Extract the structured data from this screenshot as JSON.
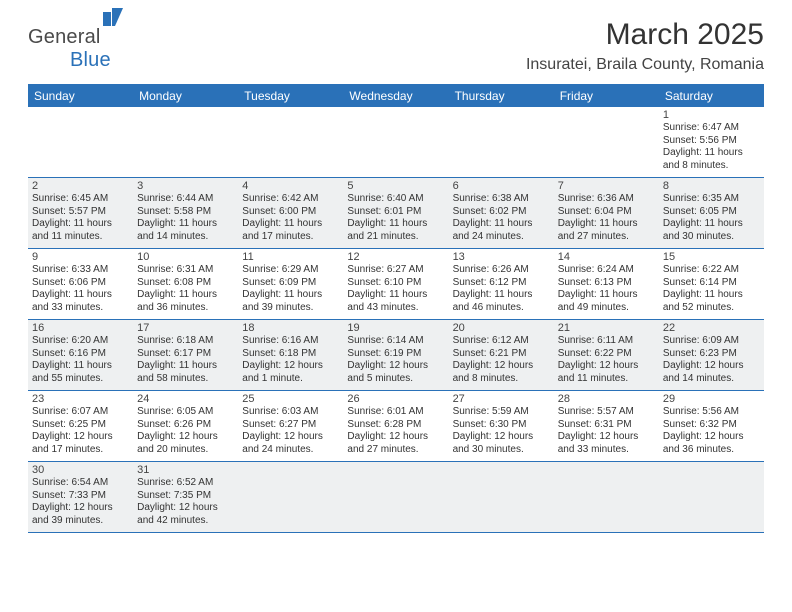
{
  "logo": {
    "word1": "General",
    "word2": "Blue"
  },
  "title": "March 2025",
  "location": "Insuratei, Braila County, Romania",
  "colors": {
    "brand": "#2a71b8",
    "shade": "#eef0f1",
    "text": "#333333"
  },
  "dow": [
    "Sunday",
    "Monday",
    "Tuesday",
    "Wednesday",
    "Thursday",
    "Friday",
    "Saturday"
  ],
  "weeks": [
    [
      null,
      null,
      null,
      null,
      null,
      null,
      {
        "n": "1",
        "sr": "6:47 AM",
        "ss": "5:56 PM",
        "dl": "11 hours and 8 minutes."
      }
    ],
    [
      {
        "n": "2",
        "sr": "6:45 AM",
        "ss": "5:57 PM",
        "dl": "11 hours and 11 minutes."
      },
      {
        "n": "3",
        "sr": "6:44 AM",
        "ss": "5:58 PM",
        "dl": "11 hours and 14 minutes."
      },
      {
        "n": "4",
        "sr": "6:42 AM",
        "ss": "6:00 PM",
        "dl": "11 hours and 17 minutes."
      },
      {
        "n": "5",
        "sr": "6:40 AM",
        "ss": "6:01 PM",
        "dl": "11 hours and 21 minutes."
      },
      {
        "n": "6",
        "sr": "6:38 AM",
        "ss": "6:02 PM",
        "dl": "11 hours and 24 minutes."
      },
      {
        "n": "7",
        "sr": "6:36 AM",
        "ss": "6:04 PM",
        "dl": "11 hours and 27 minutes."
      },
      {
        "n": "8",
        "sr": "6:35 AM",
        "ss": "6:05 PM",
        "dl": "11 hours and 30 minutes."
      }
    ],
    [
      {
        "n": "9",
        "sr": "6:33 AM",
        "ss": "6:06 PM",
        "dl": "11 hours and 33 minutes."
      },
      {
        "n": "10",
        "sr": "6:31 AM",
        "ss": "6:08 PM",
        "dl": "11 hours and 36 minutes."
      },
      {
        "n": "11",
        "sr": "6:29 AM",
        "ss": "6:09 PM",
        "dl": "11 hours and 39 minutes."
      },
      {
        "n": "12",
        "sr": "6:27 AM",
        "ss": "6:10 PM",
        "dl": "11 hours and 43 minutes."
      },
      {
        "n": "13",
        "sr": "6:26 AM",
        "ss": "6:12 PM",
        "dl": "11 hours and 46 minutes."
      },
      {
        "n": "14",
        "sr": "6:24 AM",
        "ss": "6:13 PM",
        "dl": "11 hours and 49 minutes."
      },
      {
        "n": "15",
        "sr": "6:22 AM",
        "ss": "6:14 PM",
        "dl": "11 hours and 52 minutes."
      }
    ],
    [
      {
        "n": "16",
        "sr": "6:20 AM",
        "ss": "6:16 PM",
        "dl": "11 hours and 55 minutes."
      },
      {
        "n": "17",
        "sr": "6:18 AM",
        "ss": "6:17 PM",
        "dl": "11 hours and 58 minutes."
      },
      {
        "n": "18",
        "sr": "6:16 AM",
        "ss": "6:18 PM",
        "dl": "12 hours and 1 minute."
      },
      {
        "n": "19",
        "sr": "6:14 AM",
        "ss": "6:19 PM",
        "dl": "12 hours and 5 minutes."
      },
      {
        "n": "20",
        "sr": "6:12 AM",
        "ss": "6:21 PM",
        "dl": "12 hours and 8 minutes."
      },
      {
        "n": "21",
        "sr": "6:11 AM",
        "ss": "6:22 PM",
        "dl": "12 hours and 11 minutes."
      },
      {
        "n": "22",
        "sr": "6:09 AM",
        "ss": "6:23 PM",
        "dl": "12 hours and 14 minutes."
      }
    ],
    [
      {
        "n": "23",
        "sr": "6:07 AM",
        "ss": "6:25 PM",
        "dl": "12 hours and 17 minutes."
      },
      {
        "n": "24",
        "sr": "6:05 AM",
        "ss": "6:26 PM",
        "dl": "12 hours and 20 minutes."
      },
      {
        "n": "25",
        "sr": "6:03 AM",
        "ss": "6:27 PM",
        "dl": "12 hours and 24 minutes."
      },
      {
        "n": "26",
        "sr": "6:01 AM",
        "ss": "6:28 PM",
        "dl": "12 hours and 27 minutes."
      },
      {
        "n": "27",
        "sr": "5:59 AM",
        "ss": "6:30 PM",
        "dl": "12 hours and 30 minutes."
      },
      {
        "n": "28",
        "sr": "5:57 AM",
        "ss": "6:31 PM",
        "dl": "12 hours and 33 minutes."
      },
      {
        "n": "29",
        "sr": "5:56 AM",
        "ss": "6:32 PM",
        "dl": "12 hours and 36 minutes."
      }
    ],
    [
      {
        "n": "30",
        "sr": "6:54 AM",
        "ss": "7:33 PM",
        "dl": "12 hours and 39 minutes."
      },
      {
        "n": "31",
        "sr": "6:52 AM",
        "ss": "7:35 PM",
        "dl": "12 hours and 42 minutes."
      },
      null,
      null,
      null,
      null,
      null
    ]
  ],
  "labels": {
    "sunrise": "Sunrise:",
    "sunset": "Sunset:",
    "daylight": "Daylight:"
  }
}
